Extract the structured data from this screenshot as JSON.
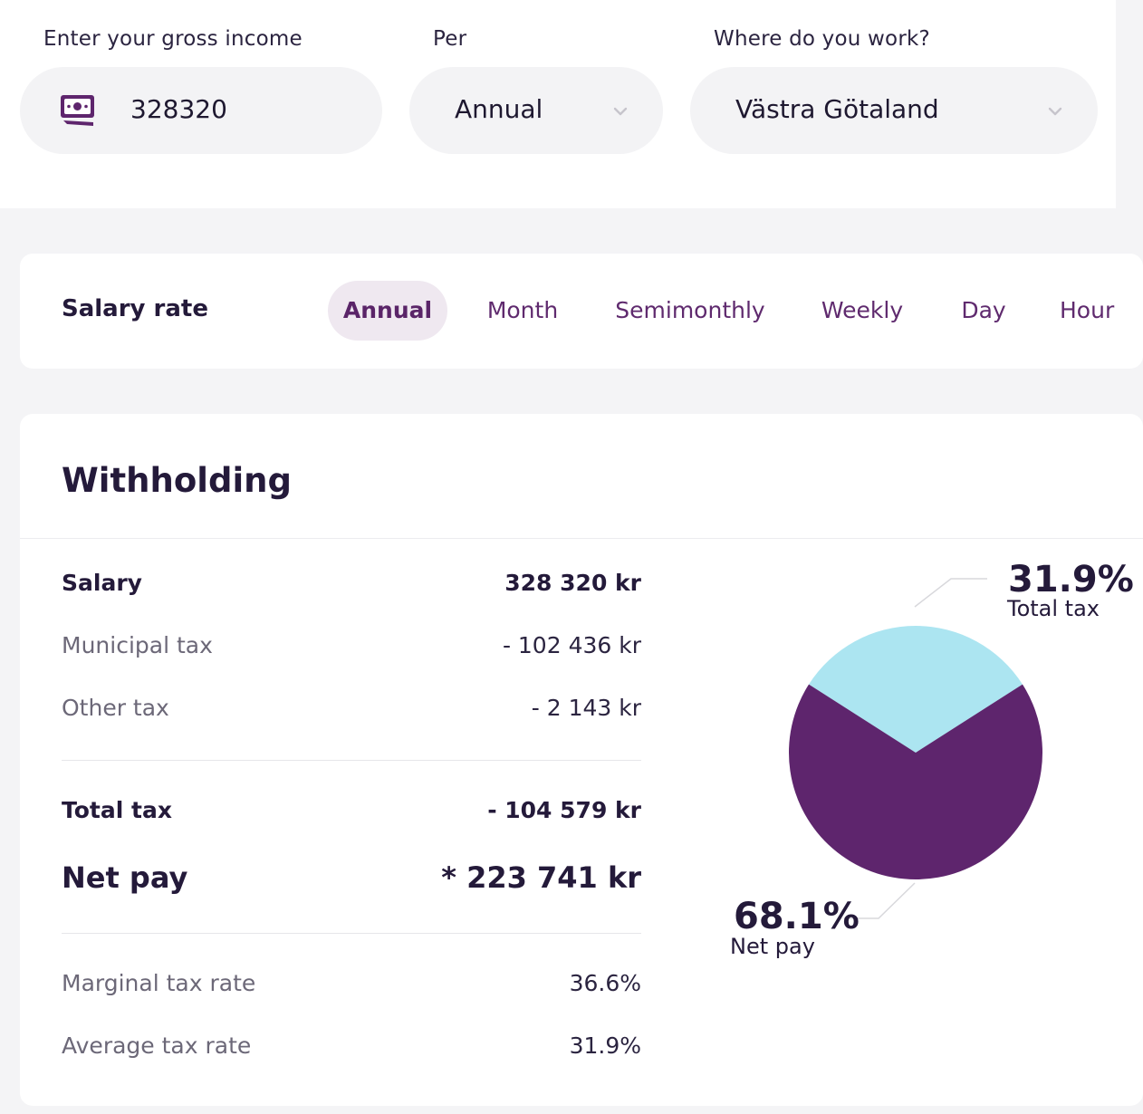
{
  "inputs": {
    "income": {
      "label": "Enter your gross income",
      "value": "328320"
    },
    "period": {
      "label": "Per",
      "value": "Annual"
    },
    "region": {
      "label": "Where do you work?",
      "value": "Västra Götaland"
    }
  },
  "salary_rate": {
    "title": "Salary rate",
    "tabs": [
      "Annual",
      "Month",
      "Semimonthly",
      "Weekly",
      "Day",
      "Hour"
    ],
    "active": "Annual"
  },
  "withholding": {
    "title": "Withholding",
    "salary": {
      "label": "Salary",
      "value": "328 320 kr"
    },
    "municipal_tax": {
      "label": "Municipal tax",
      "value": "- 102 436 kr"
    },
    "other_tax": {
      "label": "Other tax",
      "value": "- 2 143 kr"
    },
    "total_tax": {
      "label": "Total tax",
      "value": "- 104 579 kr"
    },
    "net_pay": {
      "label": "Net pay",
      "value": "* 223 741 kr"
    },
    "marginal_tax_rate": {
      "label": "Marginal tax rate",
      "value": "36.6%"
    },
    "average_tax_rate": {
      "label": "Average tax rate",
      "value": "31.9%"
    }
  },
  "chart_data": {
    "type": "pie",
    "slices": [
      {
        "name": "Total tax",
        "value": 31.9,
        "label": "31.9%",
        "color": "#ace5f1"
      },
      {
        "name": "Net pay",
        "value": 68.1,
        "label": "68.1%",
        "color": "#5e256d"
      }
    ]
  },
  "colors": {
    "accent": "#5e256d",
    "tax": "#ace5f1"
  }
}
